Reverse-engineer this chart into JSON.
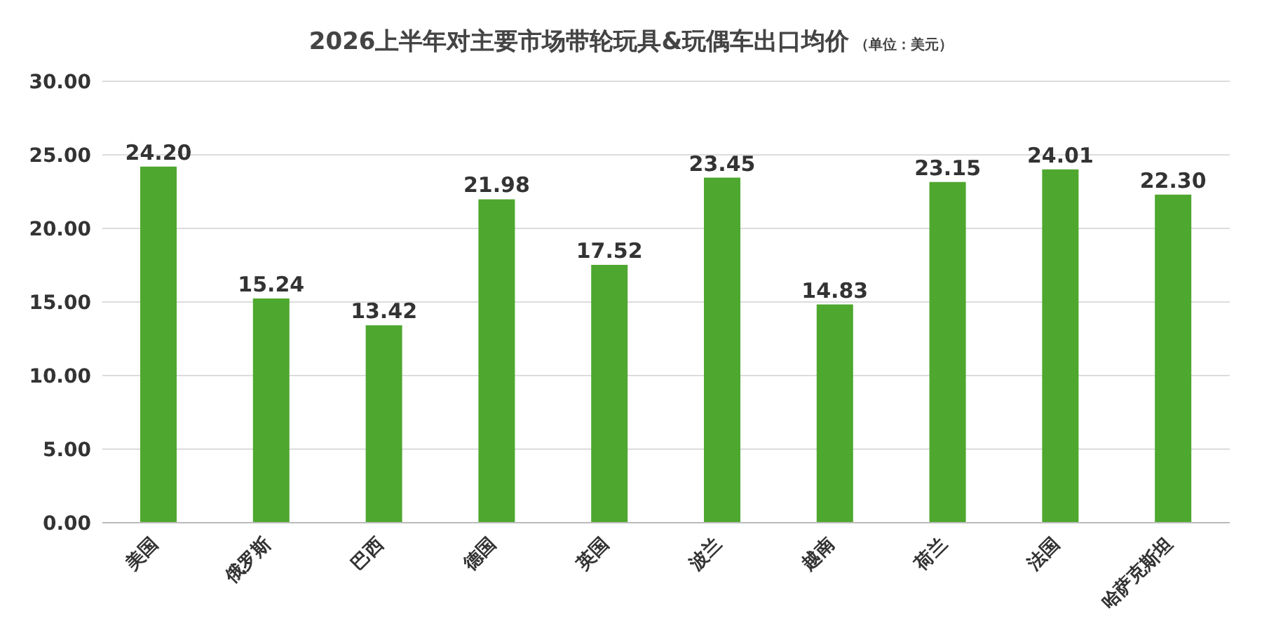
{
  "chart_data": {
    "type": "bar",
    "title": "2026上半年对主要市场带轮玩具&玩偶车出口均价",
    "subtitle": "（单位：美元）",
    "categories": [
      "美国",
      "俄罗斯",
      "巴西",
      "德国",
      "英国",
      "波兰",
      "越南",
      "荷兰",
      "法国",
      "哈萨克斯坦"
    ],
    "values": [
      24.2,
      15.24,
      13.42,
      21.98,
      17.52,
      23.45,
      14.83,
      23.15,
      24.01,
      22.3
    ],
    "value_labels": [
      "24.20",
      "15.24",
      "13.42",
      "21.98",
      "17.52",
      "23.45",
      "14.83",
      "23.15",
      "24.01",
      "22.30"
    ],
    "color": "#4ea72e",
    "ylim": [
      0,
      30
    ],
    "yticks": [
      {
        "value": 0,
        "label": "0.00"
      },
      {
        "value": 5,
        "label": "5.00"
      },
      {
        "value": 10,
        "label": "10.00"
      },
      {
        "value": 15,
        "label": "15.00"
      },
      {
        "value": 20,
        "label": "20.00"
      },
      {
        "value": 25,
        "label": "25.00"
      },
      {
        "value": 30,
        "label": "30.00"
      }
    ],
    "grid": "y"
  }
}
